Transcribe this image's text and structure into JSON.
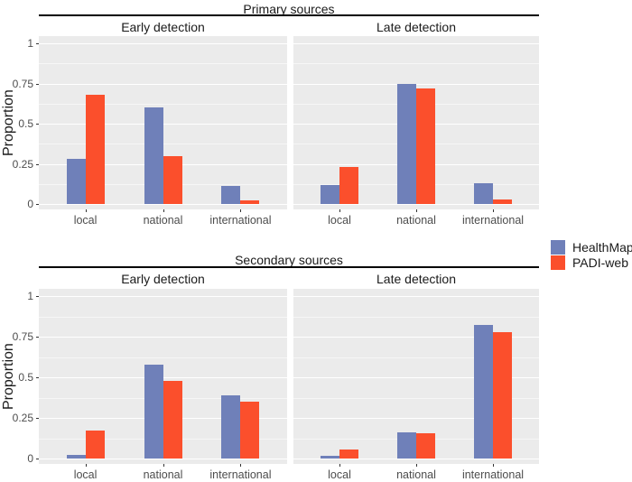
{
  "chart_data": {
    "type": "bar",
    "subtype": "grouped-dodged-faceted",
    "ylabel": "Proportion",
    "ylim": [
      0,
      1
    ],
    "categories": [
      "local",
      "national",
      "international"
    ],
    "ytick_labels": [
      "1",
      "0.75",
      "0.5",
      "0.25",
      "0"
    ],
    "ytick_values": [
      1,
      0.75,
      0.5,
      0.25,
      0
    ],
    "grid": "white major gridlines at 0.25 steps with fainter minor gridlines at 0.125 offsets on gray panels",
    "panel_background": "#EBEBEB",
    "legend_position": "right",
    "series": [
      {
        "name": "HealthMap",
        "color": "#6F80B9"
      },
      {
        "name": "PADI-web",
        "color": "#FB4F2C"
      }
    ],
    "facet_rows": [
      {
        "title": "Primary sources",
        "panels": [
          {
            "title": "Early detection",
            "series_values": [
              [
                0.28,
                0.6,
                0.11
              ],
              [
                0.68,
                0.3,
                0.02
              ]
            ]
          },
          {
            "title": "Late detection",
            "series_values": [
              [
                0.12,
                0.75,
                0.13
              ],
              [
                0.23,
                0.72,
                0.03
              ]
            ]
          }
        ]
      },
      {
        "title": "Secondary sources",
        "panels": [
          {
            "title": "Early detection",
            "series_values": [
              [
                0.02,
                0.58,
                0.39
              ],
              [
                0.17,
                0.48,
                0.35
              ]
            ]
          },
          {
            "title": "Late detection",
            "series_values": [
              [
                0.015,
                0.16,
                0.82
              ],
              [
                0.055,
                0.155,
                0.78
              ]
            ]
          }
        ]
      }
    ]
  }
}
